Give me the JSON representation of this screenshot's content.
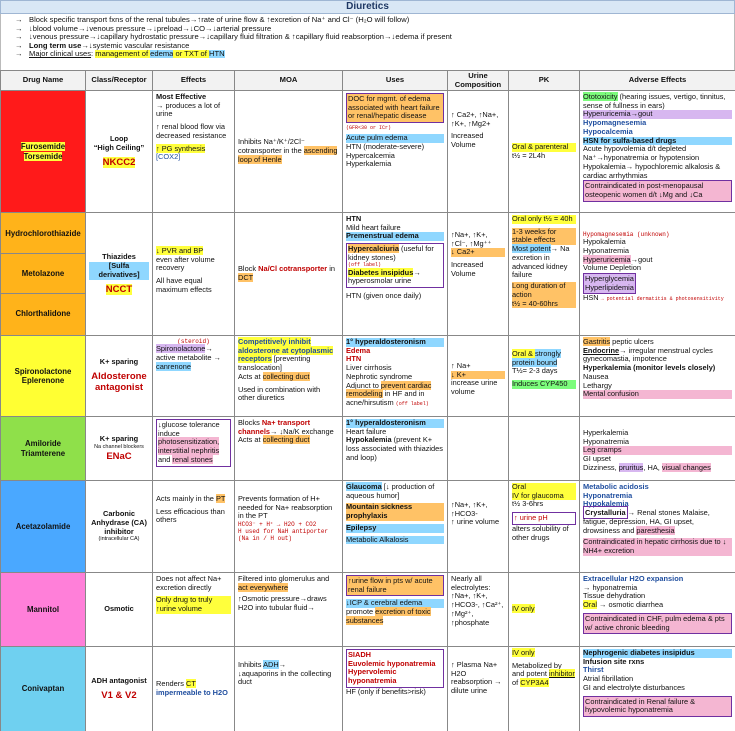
{
  "title": "Diuretics",
  "intro": [
    "Block specific transport fxns of the renal tubules→↑rate of urine flow & ↑excretion of Na⁺ and Cl⁻ (H₂O will follow)",
    "↓blood volume→↓venous pressure→↓preload→↓CO→↓arterial pressure",
    "↓venous pressure→↓capillary hydrostatic pressure→↓capillary fluid filtration & ↑capillary fluid reabsorption→↓edema if present"
  ],
  "intro_long_term_label": "Long term use",
  "intro_long_term_text": "→↓systemic vascular resistance",
  "intro_clinical_label": "Major clinical uses",
  "intro_clinical_a": "management of ",
  "intro_clinical_b": "edema",
  "intro_clinical_c": " or TXT of ",
  "intro_clinical_d": "HTN",
  "headers": [
    "Drug Name",
    "Class/Receptor",
    "Effects",
    "MOA",
    "Uses",
    "Urine Composition",
    "PK",
    "Adverse Effects"
  ],
  "rows": {
    "loop": {
      "name1": "Furosemide",
      "name2": "Torsemide",
      "cls1": "Loop",
      "cls2": "“High Ceiling”",
      "cls3": "NKCC2",
      "eff1": "Most Effective",
      "eff2": "→ produces a lot of urine",
      "eff3": "↑ renal blood flow via decreased resistance",
      "eff4": "↑ PG synthesis",
      "eff5": "[COX2]",
      "moa1": "Inhibits Na⁺/K⁺/2Cl⁻ cotransporter in the ",
      "moa2": "ascending loop of Henle",
      "uses1": "DOC for mgmt. of edema associated with heart failure or renal/hepatic disease",
      "uses1b": "(GFR<30 or ICr)",
      "uses2": "Acute pulm edema",
      "uses3": "HTN (moderate-severe)",
      "uses4": "Hypercalcemia",
      "uses5": "Hyperkalemia",
      "urine": "↑ Ca2+, ↑Na+, ↑K+, ↑Mg2+",
      "urine2": "Increased Volume",
      "pk1": "Oral & parenteral",
      "pk2": "t½ = 2L4h",
      "ae1": "Ototoxicity",
      "ae1b": " (hearing issues, vertigo, tinnitus, sense of fullness in ears)",
      "ae2": "Hyperuricemia→gout",
      "ae3": "Hypomagnesemia",
      "ae4": "Hypocalcemia",
      "ae5": "HSN for sulfa-based drugs",
      "ae6": "Acute hypovolemia d/t depleted Na⁺→hyponatremia or hypotension",
      "ae7": "Hypokalemia→ hypochloremic alkalosis & cardiac arrhythmias",
      "ae8": "Contraindicated in post-menopausal osteopenic women d/t ↓Mg and ↓Ca"
    },
    "thiazide": {
      "name1": "Hydrochlorothiazide",
      "name2": "Metolazone",
      "name3": "Chlorthalidone",
      "cls1": "Thiazides",
      "cls2": "[Sulfa derivatives]",
      "cls3": "NCCT",
      "eff1": "↓ PVR and BP",
      "eff2": "even after volume recovery",
      "eff3": "All have equal maximum effects",
      "moa1": "Block ",
      "moa2": "Na/Cl cotransporter",
      "moa3": " in ",
      "moa4": "DCT",
      "uses1": "HTN",
      "uses2": "Mild heart failure",
      "uses3": "Premenstrual edema",
      "uses4": "Hypercalciuria",
      "uses4b": " (useful for kidney stones)",
      "uses4c": "(off label)",
      "uses5": "Diabetes insipidus",
      "uses5b": "→ hyperosmolar urine",
      "uses6": "HTN (given once daily)",
      "urine1": "↑Na+, ↑K+, ↑Cl⁻, ↑Mg⁺⁺",
      "urine2": "↓ Ca2+",
      "urine3": "Increased Volume",
      "pk1": "Oral only t½ = 40h",
      "pk2": "1-3 weeks for stable effects",
      "pk3": "Most potent",
      "pk3b": "→ Na excretion in advanced kidney failure",
      "pk4": "Long duration of action",
      "pk5": "t½ = 40-60hrs",
      "ae1": "Hypomagnesemia (unknown)",
      "ae2": "Hypokalemia",
      "ae3": "Hyponatremia",
      "ae4": "Hyperuricemia",
      "ae4b": "→gout",
      "ae5": "Volume Depletion",
      "ae6": "Hyperglycemia",
      "ae7": "Hyperlipidemia",
      "ae8": "HSN",
      "ae8b": "→ potential dermatitis & photosensitivity"
    },
    "spiro": {
      "name1": "Spironolactone",
      "name2": "Eplerenone",
      "cls1": "K+ sparing",
      "cls2": "Aldosterone antagonist",
      "eff0": "(steroid)",
      "eff1": "Spironolactone",
      "eff2": "→ active metabolite → ",
      "eff3": "canrenone",
      "moa1": "Competitively inhibit aldosterone at cytoplasmic receptors",
      "moa2": " [preventing translocation]",
      "moa3": "Acts at ",
      "moa4": "collecting duct",
      "moa5": "Used in combination with other diuretics",
      "uses1": "1° hyperaldosteronism",
      "uses2": "Edema",
      "uses3": "HTN",
      "uses4": "Liver cirrhosis",
      "uses5": "Nephrotic syndrome",
      "uses6": "Adjunct to ",
      "uses6b": "prevent cardiac remodeling",
      "uses6c": " in HF and in acne/hirsutism",
      "uses6d": "(off label)",
      "urine1": "↑ Na+",
      "urine2": "↓ K+",
      "urine3": "increase urine volume",
      "pk1": "Oral & ",
      "pk1b": "strongly protein bound",
      "pk2": "T½= 2-3 days",
      "pk3": "Induces CYP450",
      "ae1": "Gastritis",
      "ae1b": " peptic ulcers",
      "ae2": "Endocrine",
      "ae2b": "→ irregular menstrual cycles gynecomastia, impotence",
      "ae3": "Hyperkalemia (monitor levels closely)",
      "ae4": "Nausea",
      "ae5": "Lethargy",
      "ae6": "Mental confusion"
    },
    "amiloride": {
      "name1": "Amiloride",
      "name2": "Triamterene",
      "cls1": "K+ sparing",
      "cls1b": "Na channel blockers",
      "cls2": "ENaC",
      "eff1": "↓glucose tolerance induce",
      "eff2": "photosensitization, interstitial nephritis",
      "eff3": " and ",
      "eff4": "renal stones",
      "moa1": "Blocks ",
      "moa2": "Na+ transport channels",
      "moa3": "→ ↓Na/K exchange Acts at ",
      "moa4": "collecting duct",
      "uses1": "1° hyperaldosteronism",
      "uses2": "Heart failure",
      "uses3": "Hypokalemia",
      "uses3b": " (prevent K+ loss associated with thiazides and loop)",
      "urine": "",
      "pk": "",
      "ae1": "Hyperkalemia",
      "ae2": "Hyponatremia",
      "ae3": "Leg cramps",
      "ae4": "GI upset",
      "ae5": "Dizziness, ",
      "ae5b": "pruritus",
      "ae5c": ", HA, ",
      "ae5d": "visual changes"
    },
    "acetaz": {
      "name": "Acetazolamide",
      "cls1": "Carbonic Anhydrase (CA) inhibitor",
      "cls2": "(intracellular CA)",
      "eff1": "Acts mainly in the ",
      "eff2": "PT",
      "eff3": "Less efficacious than others",
      "moa1": "Prevents formation of H+ needed for Na+ reabsorption in the PT",
      "moa2": "HCO3⁻ + H⁺ → H2O + CO2",
      "moa3": "H used for NaH antiporter (Na in / H out)",
      "uses1": "Glaucoma",
      "uses1b": " [↓ production of aqueous humor]",
      "uses2": "Mountain sickness prophylaxis",
      "uses3": "Epilepsy",
      "uses4": "Metabolic Alkalosis",
      "urine1": "↑Na+, ↑K+, ↑HCO3-",
      "urine2": "↑ urine volume",
      "pk1": "Oral",
      "pk2": "IV for glaucoma",
      "pk3": "t½ 3-6hrs",
      "pk4": "↑ urine pH",
      "pk5": "alters solubility of other drugs",
      "ae1": "Metabolic acidosis",
      "ae2": "Hyponatremia",
      "ae3": "Hypokalemia",
      "ae4": "Crystalluria",
      "ae4b": "→ Renal stones",
      "ae5": "Malaise, fatigue, depression, HA, GI upset, drowsiness and ",
      "ae5b": "paresthesia",
      "ae6": "Contraindicated in hepatic cirrhosis due to ↓ NH4+ excretion"
    },
    "mannitol": {
      "name": "Mannitol",
      "cls": "Osmotic",
      "eff1": "Does not affect Na+ excretion directly",
      "eff2": "Only drug to truly ↑urine volume",
      "moa1": "Filtered into glomerulus and ",
      "moa2": "act everywhere",
      "moa3": "↑Osmotic pressure→draws H2O into tubular fluid→",
      "uses1": "↑urine flow in pts w/ acute renal failure",
      "uses2": "↓ICP & cerebral edema",
      "uses3": "promote ",
      "uses3b": "excretion of toxic substances",
      "urine1": "Nearly all electrolytes:",
      "urine2": "↑Na+, ↑K+, ↑HCO3-, ↑Ca²⁺, ↑Mg²⁺, ↑phosphate",
      "pk": "IV only",
      "ae1": "Extracellular H2O expansion",
      "ae1b": "→ hyponatremia",
      "ae2": "Tissue dehydration",
      "ae3": "Oral",
      "ae3b": " → osmotic diarrhea",
      "ae4": "Contraindicated in CHF, pulm edema & pts w/ active chronic bleeding"
    },
    "conivaptan": {
      "name": "Conivaptan",
      "cls1": "ADH antagonist",
      "cls2": "V1 & V2",
      "eff1": "Renders ",
      "eff2": "CT",
      "eff3": " impermeable to H2O",
      "moa1": "Inhibits ",
      "moa2": "ADH",
      "moa3": "→",
      "moa4": "↓aquaporins in the collecting duct",
      "uses1": "SIADH",
      "uses2": "Euvolemic hyponatremia",
      "uses3": "Hypervolemic hyponatremia",
      "uses4": "HF (only if benefits>risk)",
      "urine1": "↑ Plasma Na+",
      "urine2": "H2O reabsorption → dilute urine",
      "pk1": "IV only",
      "pk2": "Metabolized by and potent ",
      "pk2b": "inhibitor",
      "pk2c": " of ",
      "pk3": "CYP3A4",
      "ae1": "Nephrogenic diabetes insipidus",
      "ae2": "Infusion site rxns",
      "ae3": "Thirst",
      "ae4": "Atrial fibrillation",
      "ae5": "GI and electrolyte disturbances",
      "ae6": "Contraindicated in Renal failure & hypovolemic hyponatremia"
    }
  },
  "colors": {
    "loop": "#ff1a1a",
    "thiazide": "#ffb31a",
    "spiro": "#ffff33",
    "amiloride": "#8fe04a",
    "acetaz": "#4aa8ff",
    "mannitol": "#ff7fd9",
    "conivaptan": "#6fd0f0"
  }
}
